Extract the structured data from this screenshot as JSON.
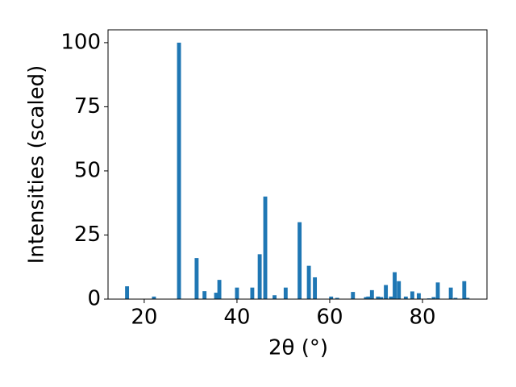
{
  "chart_data": {
    "type": "bar",
    "xlabel": "2θ (°)",
    "ylabel": "Intensities (scaled)",
    "color": "#1f77b4",
    "x": [
      16.3,
      22.1,
      27.5,
      31.3,
      33.0,
      35.5,
      36.2,
      40.0,
      43.3,
      44.9,
      46.1,
      48.1,
      50.5,
      53.5,
      55.5,
      56.8,
      60.3,
      61.6,
      65.0,
      67.8,
      68.3,
      69.1,
      70.4,
      71.1,
      72.1,
      73.2,
      74.0,
      74.9,
      76.4,
      77.8,
      79.2,
      81.4,
      82.4,
      83.3,
      86.1,
      87.1,
      89.0,
      89.7
    ],
    "values": [
      5.0,
      1.0,
      100,
      16,
      3.1,
      2.5,
      7.5,
      4.5,
      4.5,
      17.5,
      40,
      1.5,
      4.5,
      30,
      13,
      8.5,
      1.0,
      0.5,
      2.8,
      0.8,
      1.0,
      3.5,
      1.0,
      0.8,
      5.5,
      1.0,
      10.5,
      7.0,
      1.0,
      3.0,
      2.3,
      0.3,
      0.8,
      6.5,
      4.5,
      0.5,
      7.0,
      0.5
    ],
    "xlim": [
      12.2,
      93.9
    ],
    "xticks": [
      20,
      40,
      60,
      80
    ],
    "ylim": [
      0,
      105
    ],
    "yticks": [
      0,
      25,
      50,
      75,
      100
    ]
  }
}
